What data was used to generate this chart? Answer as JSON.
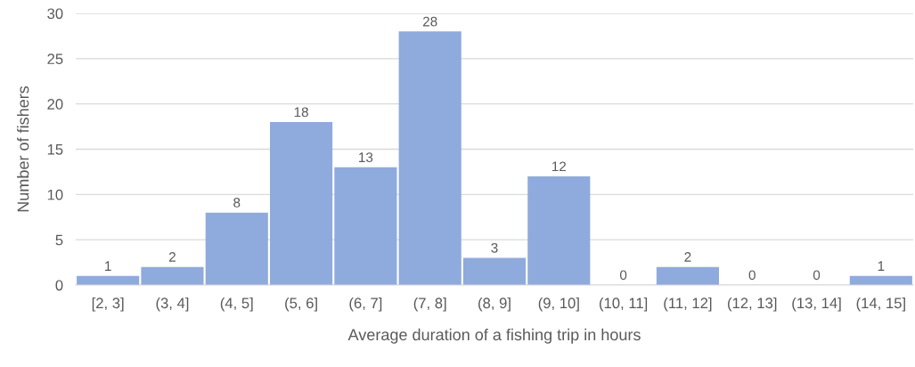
{
  "chart_data": {
    "type": "bar",
    "xlabel": "Average duration of a fishing trip in hours",
    "ylabel": "Number of fishers",
    "categories": [
      "[2, 3]",
      "(3, 4]",
      "(4, 5]",
      "(5, 6]",
      "(6, 7]",
      "(7, 8]",
      "(8, 9]",
      "(9, 10]",
      "(10, 11]",
      "(11, 12]",
      "(12, 13]",
      "(13, 14]",
      "(14, 15]"
    ],
    "values": [
      1,
      2,
      8,
      18,
      13,
      28,
      3,
      12,
      0,
      2,
      0,
      0,
      1
    ],
    "color": "#8faadc",
    "ylim": [
      0,
      30
    ],
    "yticks": [
      0,
      5,
      10,
      15,
      20,
      25,
      30
    ],
    "grid": "y",
    "data_labels": true,
    "legend": false
  }
}
